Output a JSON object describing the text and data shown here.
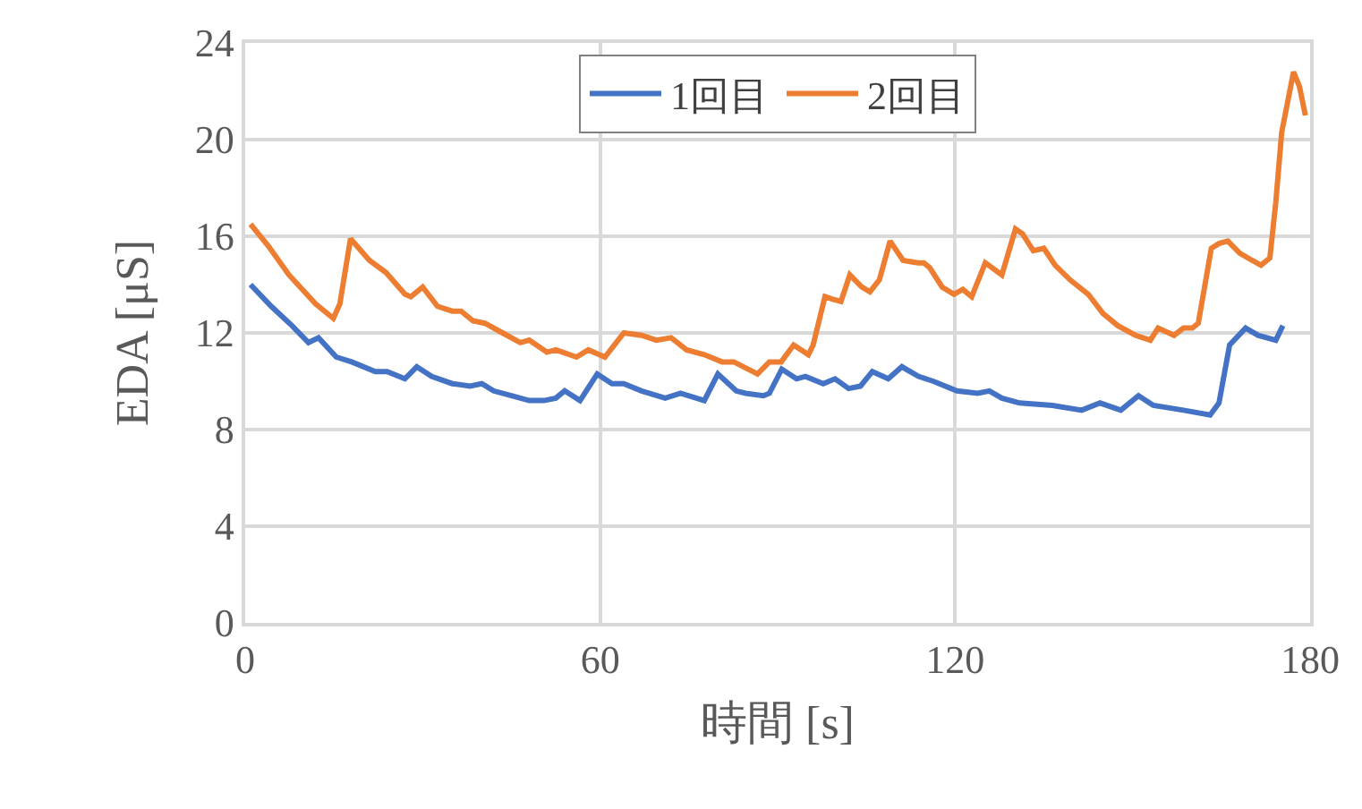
{
  "chart_data": {
    "type": "line",
    "xlabel": "時間 [s]",
    "ylabel": "EDA [μS]",
    "xlim": [
      0,
      180
    ],
    "xticks": [
      0,
      60,
      120,
      180
    ],
    "ylim": [
      0,
      24
    ],
    "yticks": [
      0,
      4,
      8,
      12,
      16,
      20,
      24
    ],
    "grid": true,
    "legend": "top",
    "marker": "none",
    "line_style": "solid",
    "series": [
      {
        "name": "1回目",
        "color": "#4472c4",
        "x": [
          0.9,
          4.4,
          7.9,
          10.7,
          12.4,
          15.4,
          18,
          22,
          24,
          27,
          29,
          31.5,
          35,
          38,
          40,
          42,
          45,
          48,
          50.5,
          52.5,
          54,
          56.6,
          59.5,
          62,
          64,
          67,
          71,
          73.6,
          77.6,
          79.9,
          83,
          84.6,
          87.6,
          88.6,
          90.7,
          93.2,
          94.7,
          97.7,
          99.7,
          102,
          104,
          106,
          108.7,
          111,
          113.8,
          116.3,
          120.3,
          123.8,
          125.8,
          127.9,
          130.9,
          136.4,
          141.4,
          144.5,
          148,
          151,
          153.5,
          158.6,
          163.1,
          164.6,
          166.4,
          169.1,
          171.2,
          174.2,
          175.4
        ],
        "values": [
          14.0,
          13.1,
          12.3,
          11.6,
          11.8,
          11.0,
          10.8,
          10.4,
          10.4,
          10.1,
          10.6,
          10.2,
          9.9,
          9.8,
          9.9,
          9.6,
          9.4,
          9.2,
          9.2,
          9.3,
          9.6,
          9.2,
          10.3,
          9.9,
          9.9,
          9.6,
          9.3,
          9.5,
          9.2,
          10.3,
          9.6,
          9.5,
          9.4,
          9.5,
          10.5,
          10.1,
          10.2,
          9.9,
          10.1,
          9.7,
          9.8,
          10.4,
          10.1,
          10.6,
          10.2,
          10.0,
          9.6,
          9.5,
          9.6,
          9.3,
          9.1,
          9.0,
          8.8,
          9.1,
          8.8,
          9.4,
          9.0,
          8.8,
          8.6,
          9.1,
          11.5,
          12.2,
          11.9,
          11.7,
          12.3
        ]
      },
      {
        "name": "2回目",
        "color": "#ed7d31",
        "x": [
          0.9,
          3.9,
          7.4,
          10.4,
          11.9,
          14.9,
          16,
          17.8,
          21,
          23.8,
          27,
          28,
          30,
          32.5,
          35,
          36.5,
          38.5,
          40.5,
          43.5,
          46.5,
          48,
          51,
          52.5,
          56,
          58,
          60.8,
          64,
          67,
          69.5,
          72,
          74.6,
          77.6,
          80.6,
          82.6,
          86.6,
          88.6,
          90.6,
          92.7,
          95.2,
          96,
          98,
          99.2,
          100.7,
          102.2,
          104.2,
          105.6,
          107.2,
          109,
          111.2,
          113.7,
          114.7,
          115.7,
          117.8,
          119.8,
          121.3,
          122.8,
          125.1,
          127.9,
          130.2,
          131.4,
          133.2,
          135,
          136.9,
          139.4,
          142.5,
          145,
          147.5,
          150.5,
          153,
          154.3,
          157,
          158.6,
          160.1,
          161.1,
          163.3,
          164.6,
          166.1,
          168.1,
          170.2,
          171.7,
          173.2,
          174.2,
          175.2,
          177.2,
          178.2,
          179.2
        ],
        "values": [
          16.5,
          15.6,
          14.4,
          13.6,
          13.2,
          12.6,
          13.2,
          15.9,
          15.0,
          14.5,
          13.6,
          13.5,
          13.9,
          13.1,
          12.9,
          12.9,
          12.5,
          12.4,
          12.0,
          11.6,
          11.7,
          11.2,
          11.3,
          11.0,
          11.3,
          11.0,
          12.0,
          11.9,
          11.7,
          11.8,
          11.3,
          11.1,
          10.8,
          10.8,
          10.3,
          10.8,
          10.8,
          11.5,
          11.1,
          11.5,
          13.5,
          13.4,
          13.3,
          14.4,
          13.9,
          13.7,
          14.2,
          15.8,
          15.0,
          14.9,
          14.9,
          14.7,
          13.9,
          13.6,
          13.8,
          13.5,
          14.9,
          14.4,
          16.3,
          16.1,
          15.4,
          15.5,
          14.8,
          14.2,
          13.6,
          12.8,
          12.3,
          11.9,
          11.7,
          12.2,
          11.9,
          12.2,
          12.2,
          12.4,
          15.5,
          15.7,
          15.8,
          15.3,
          15.0,
          14.8,
          15.1,
          17.4,
          20.3,
          22.8,
          22.2,
          21.0
        ]
      }
    ]
  }
}
